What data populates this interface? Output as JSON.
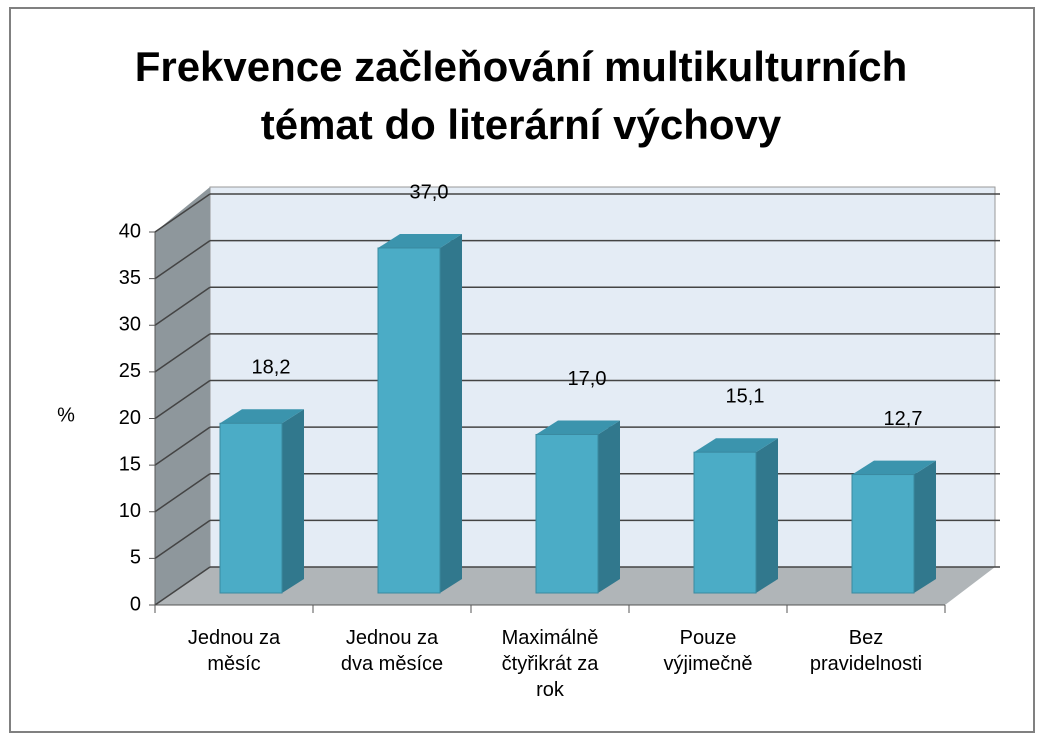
{
  "chart_data": {
    "type": "bar3d",
    "title": "Frekvence začleňování multikulturních\ntémat do literární výchovy",
    "ylabel": "%",
    "categories": [
      "Jednou za\nměsíc",
      "Jednou za\ndva měsíce",
      "Maximálně\nčtyřikrát za\nrok",
      "Pouze\nvýjimečně",
      "Bez\npravidelnosti"
    ],
    "values": [
      18.2,
      37.0,
      17.0,
      15.1,
      12.7
    ],
    "value_labels": [
      "18,2",
      "37,0",
      "17,0",
      "15,1",
      "12,7"
    ],
    "color": "#4bacc6",
    "ylim": [
      0,
      40
    ],
    "yticks": [
      0,
      5,
      10,
      15,
      20,
      25,
      30,
      35,
      40
    ],
    "grid": true
  }
}
